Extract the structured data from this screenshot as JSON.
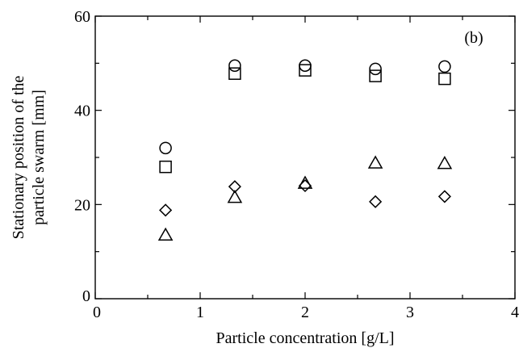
{
  "chart_data": {
    "type": "scatter",
    "title": "",
    "annotation": "(b)",
    "xlabel": "Particle concentration [g/L]",
    "ylabel_lines": [
      "Stationary  position of  the",
      "particle swarm [mm]"
    ],
    "xlim": [
      0,
      4
    ],
    "ylim": [
      0,
      60
    ],
    "xticks": [
      0,
      1,
      2,
      3,
      4
    ],
    "yticks": [
      0,
      20,
      40,
      60
    ],
    "grid": false,
    "legend": "none",
    "series": [
      {
        "marker": "circle",
        "x": [
          0.67,
          1.33,
          2.0,
          2.67,
          3.33
        ],
        "y": [
          32.0,
          49.5,
          49.5,
          48.8,
          49.3
        ]
      },
      {
        "marker": "square",
        "x": [
          0.67,
          1.33,
          2.0,
          2.67,
          3.33
        ],
        "y": [
          28.0,
          47.8,
          48.5,
          47.3,
          46.7
        ]
      },
      {
        "marker": "triangle",
        "x": [
          0.67,
          1.33,
          2.0,
          2.67,
          3.33
        ],
        "y": [
          13.5,
          21.5,
          24.5,
          28.8,
          28.7
        ]
      },
      {
        "marker": "diamond",
        "x": [
          0.67,
          1.33,
          2.0,
          2.67,
          3.33
        ],
        "y": [
          18.8,
          23.8,
          24.0,
          20.6,
          21.7
        ]
      }
    ]
  }
}
